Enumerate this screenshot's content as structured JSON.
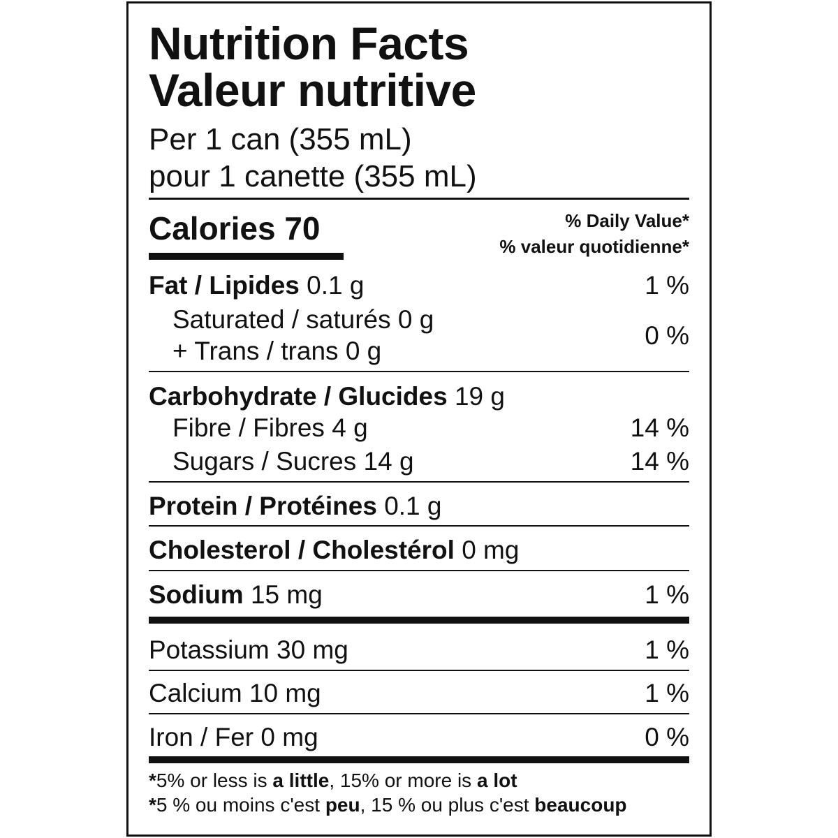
{
  "title_en": "Nutrition Facts",
  "title_fr": "Valeur nutritive",
  "serving_en": "Per 1 can (355 mL)",
  "serving_fr": "pour 1 canette (355 mL)",
  "calories": {
    "label": "Calories",
    "value": "70"
  },
  "daily_value_en": "% Daily Value*",
  "daily_value_fr": "% valeur quotidienne*",
  "nutrients": [
    {
      "label": "Fat / Lipides",
      "amount": "0.1 g",
      "dv": "1 %"
    },
    {
      "label": "Saturated / saturés",
      "amount": "0 g"
    },
    {
      "label": "+ Trans / trans",
      "amount": "0 g",
      "dv": "0 %"
    },
    {
      "label": "Carbohydrate / Glucides",
      "amount": "19 g"
    },
    {
      "label": "Fibre / Fibres",
      "amount": "4 g",
      "dv": "14 %"
    },
    {
      "label": "Sugars / Sucres",
      "amount": "14 g",
      "dv": "14 %"
    },
    {
      "label": "Protein / Protéines",
      "amount": "0.1 g"
    },
    {
      "label": "Cholesterol / Cholestérol",
      "amount": "0 mg"
    },
    {
      "label": "Sodium",
      "amount": "15 mg",
      "dv": "1 %"
    },
    {
      "label": "Potassium",
      "amount": "30 mg",
      "dv": "1 %"
    },
    {
      "label": "Calcium",
      "amount": "10 mg",
      "dv": "1 %"
    },
    {
      "label": "Iron / Fer",
      "amount": "0 mg",
      "dv": "0 %"
    }
  ],
  "footnote_en": {
    "star": "*",
    "p1": "5% or less is ",
    "b1": "a little",
    "p2": ", 15% or more is ",
    "b2": "a lot"
  },
  "footnote_fr": {
    "star": "*",
    "p1": "5 % ou moins c'est ",
    "b1": "peu",
    "p2": ", 15 % ou plus c'est ",
    "b2": "beaucoup"
  }
}
